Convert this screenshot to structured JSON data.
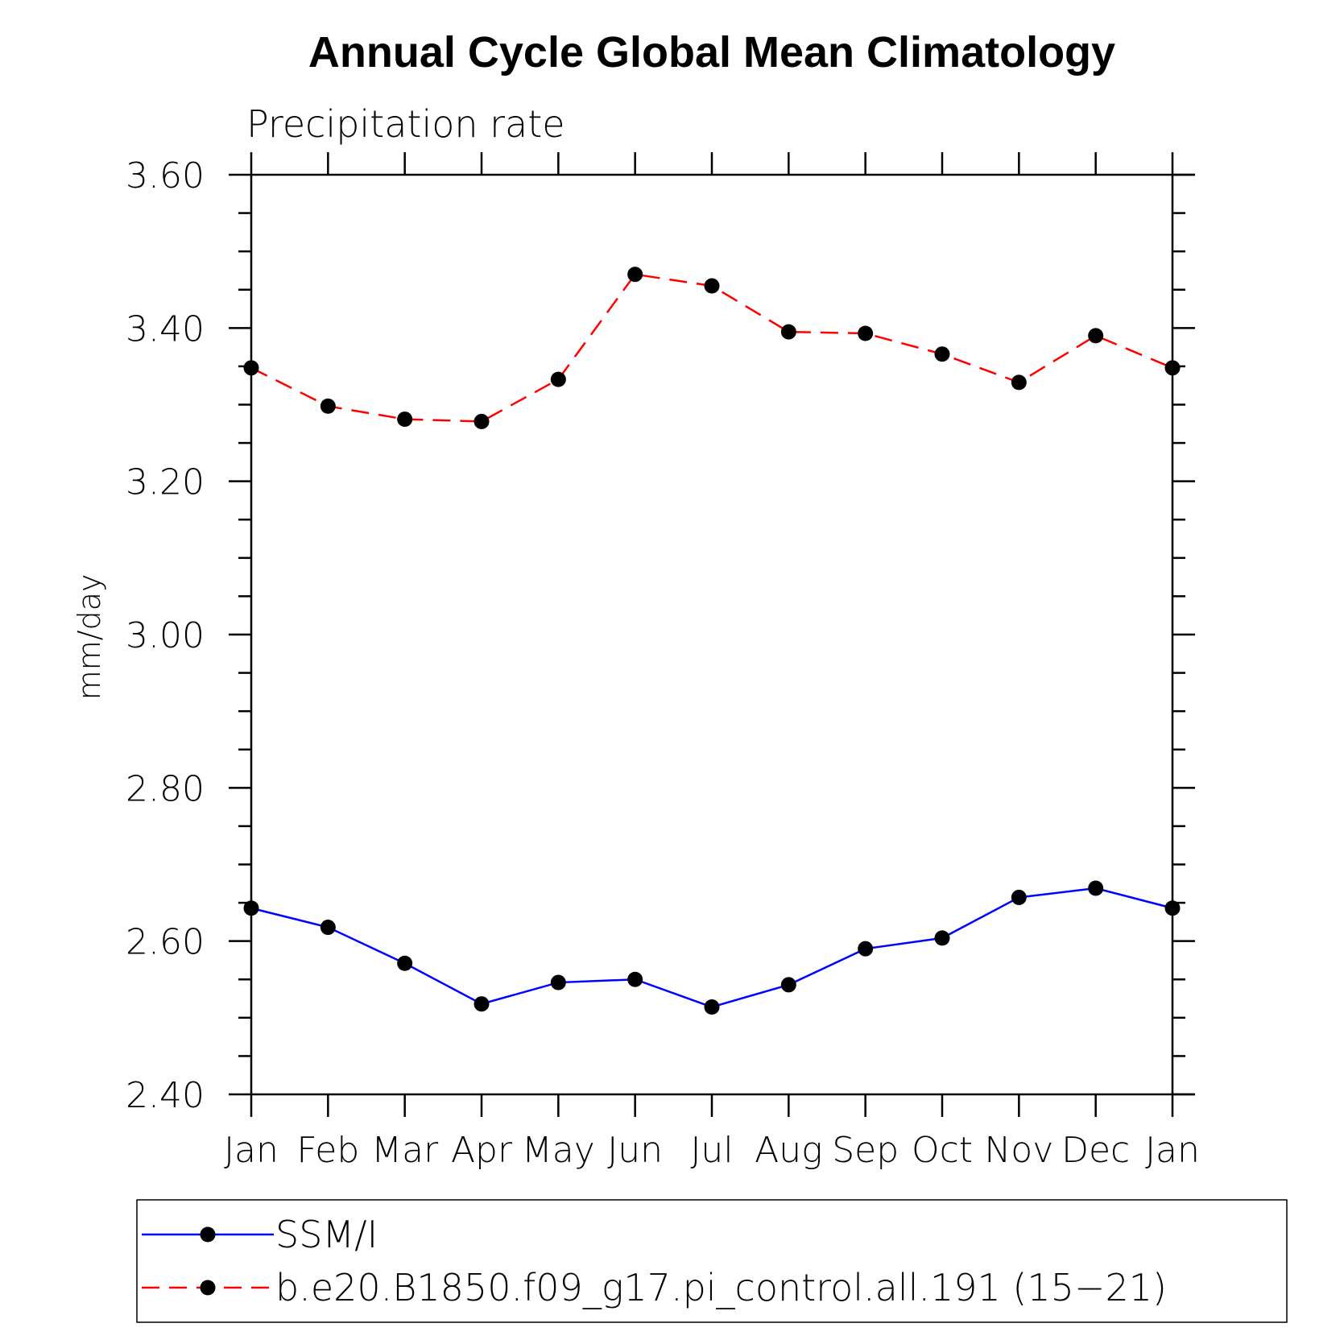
{
  "chart_data": {
    "type": "line",
    "title": "Annual Cycle Global Mean Climatology",
    "subtitle": "Precipitation rate",
    "xlabel": "",
    "ylabel": "mm/day",
    "categories": [
      "Jan",
      "Feb",
      "Mar",
      "Apr",
      "May",
      "Jun",
      "Jul",
      "Aug",
      "Sep",
      "Oct",
      "Nov",
      "Dec",
      "Jan"
    ],
    "ylim": [
      2.4,
      3.6
    ],
    "yticks": [
      "2.40",
      "2.60",
      "2.80",
      "3.00",
      "3.20",
      "3.40",
      "3.60"
    ],
    "grid": false,
    "legend_position": "bottom",
    "series": [
      {
        "name": "SSM/I",
        "color": "#0000ff",
        "dash": "solid",
        "marker": "filled-circle",
        "values": [
          2.643,
          2.618,
          2.571,
          2.518,
          2.546,
          2.55,
          2.514,
          2.543,
          2.59,
          2.604,
          2.657,
          2.669,
          2.643
        ]
      },
      {
        "name": "b.e20.B1850.f09_g17.pi_control.all.191 (15−21)",
        "color": "#ff0000",
        "dash": "dashed",
        "marker": "filled-circle",
        "values": [
          3.348,
          3.298,
          3.281,
          3.278,
          3.333,
          3.47,
          3.455,
          3.395,
          3.393,
          3.366,
          3.329,
          3.39,
          3.348
        ]
      }
    ]
  }
}
